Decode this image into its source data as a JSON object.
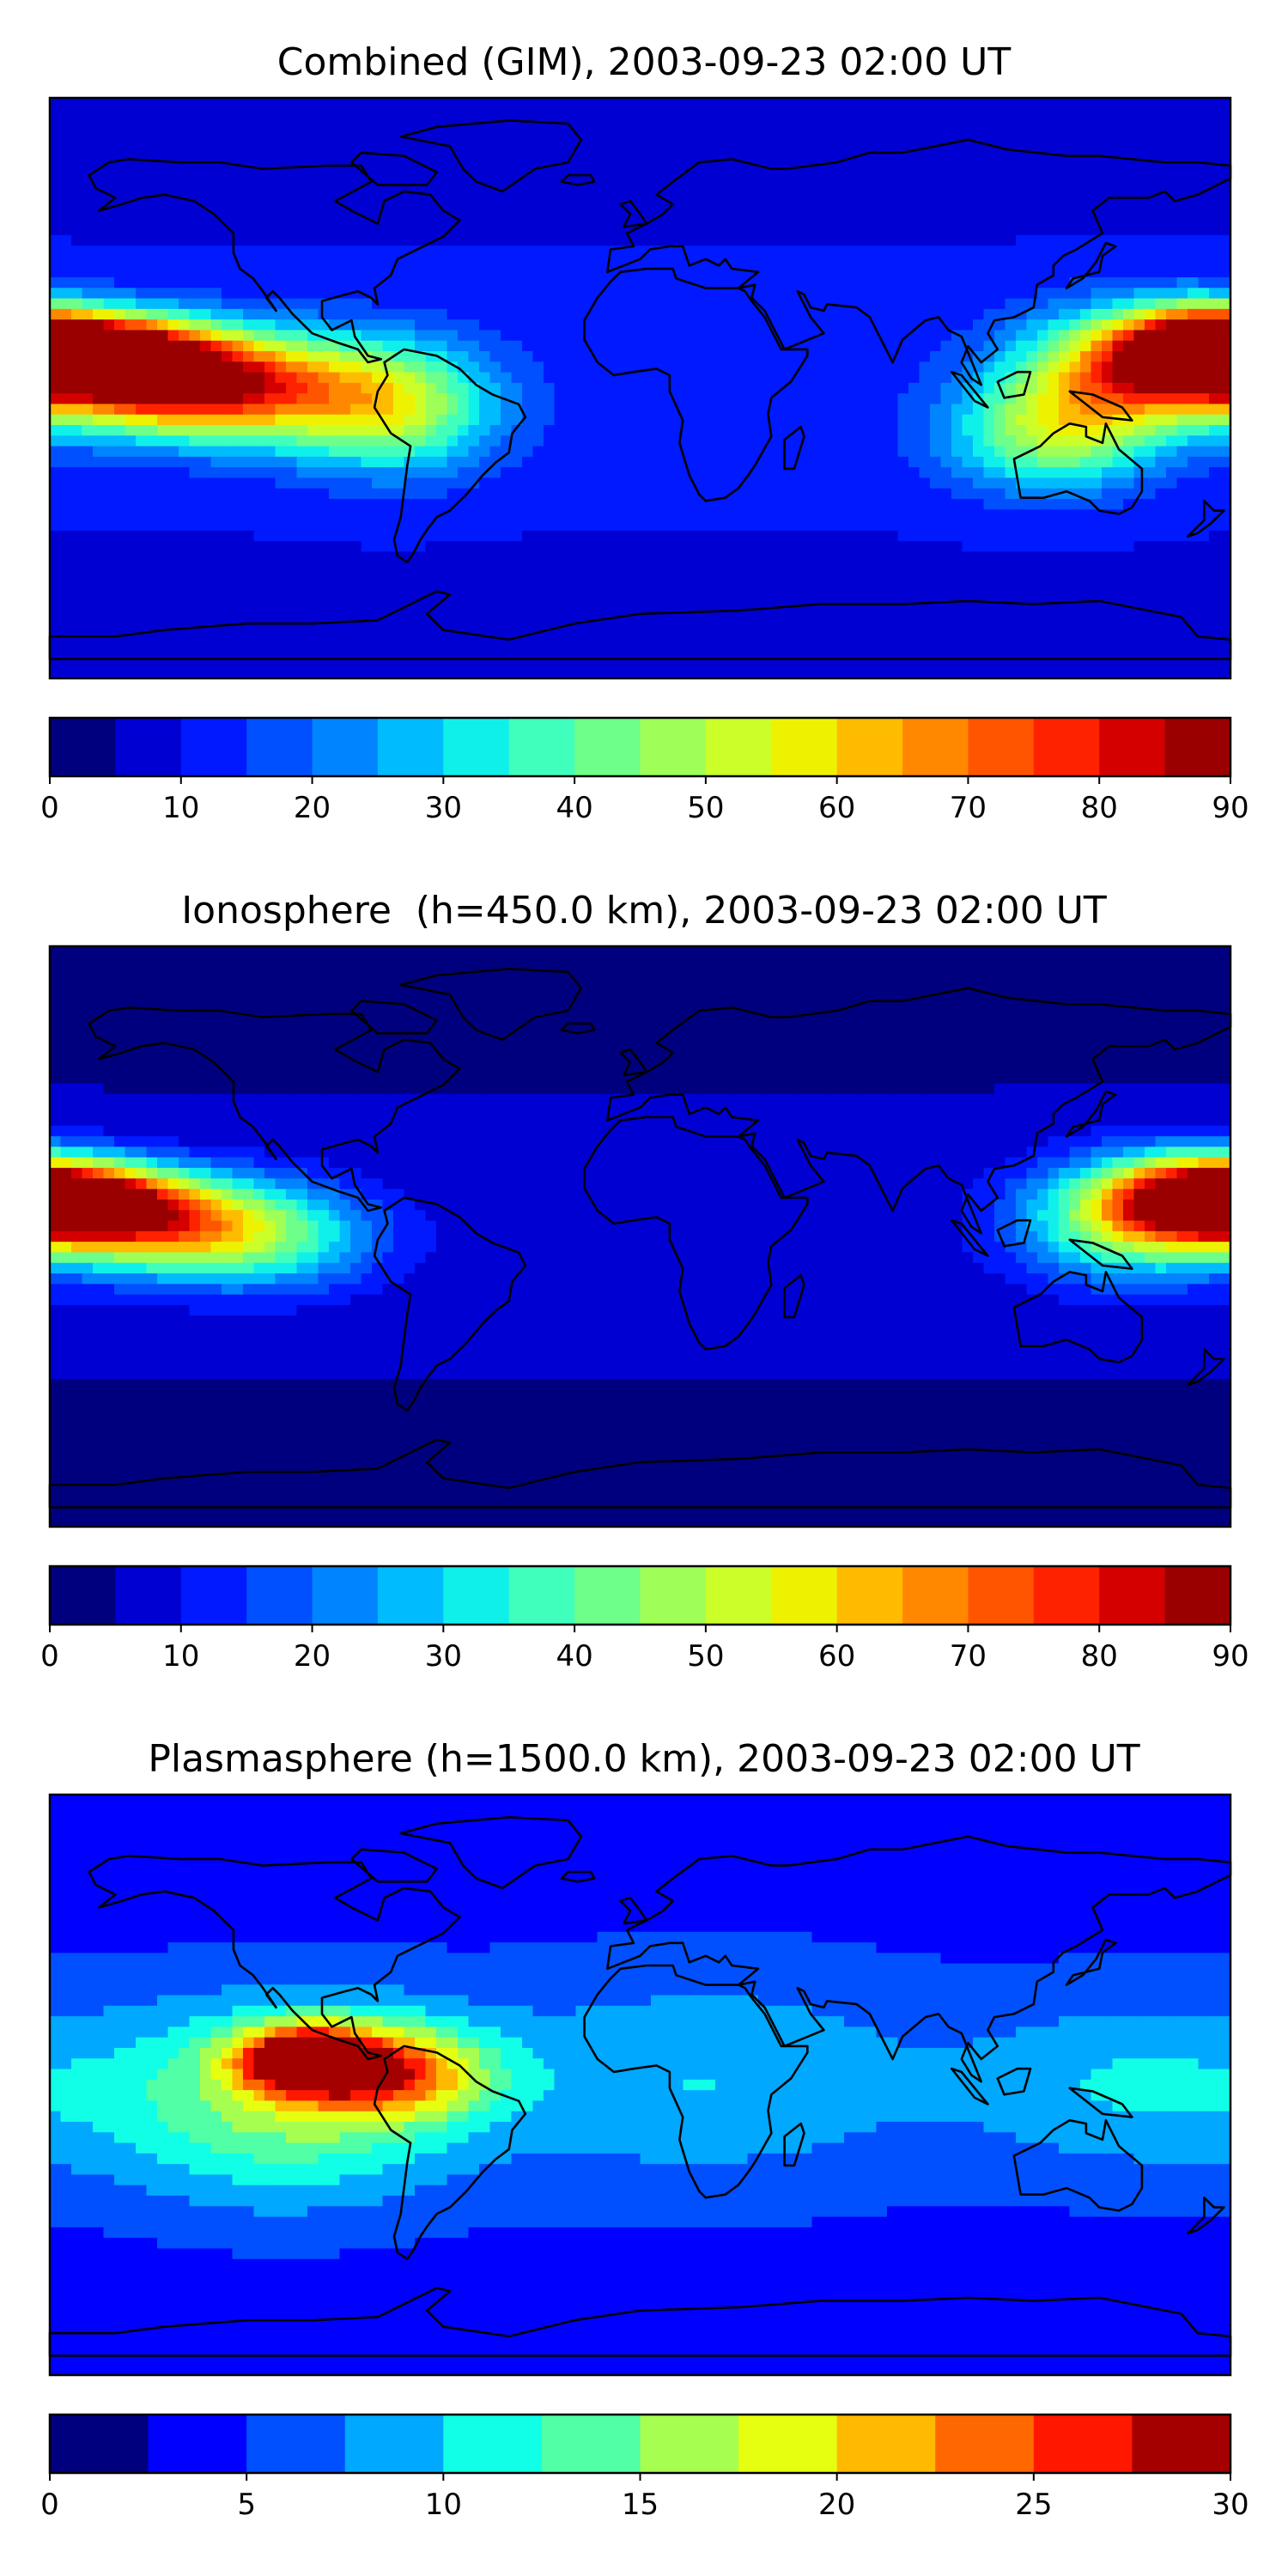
{
  "chart_data": [
    {
      "type": "heatmap",
      "title": "Combined (GIM), 2003-09-23 02:00 UT",
      "projection": "plate-carree",
      "extent": {
        "lon": [
          -180,
          180
        ],
        "lat": [
          -90,
          90
        ]
      },
      "coastlines": true,
      "colormap": "jet",
      "colorbar": {
        "placement": "bottom",
        "range": [
          0,
          90
        ],
        "levels": [
          0,
          5,
          10,
          15,
          20,
          25,
          30,
          35,
          40,
          45,
          50,
          55,
          60,
          65,
          70,
          75,
          80,
          85,
          90
        ],
        "ticks": [
          "0",
          "10",
          "20",
          "30",
          "40",
          "50",
          "60",
          "70",
          "80",
          "90"
        ],
        "colors": [
          "#00007f",
          "#0000d3",
          "#0019ff",
          "#0050ff",
          "#0084ff",
          "#00bcff",
          "#10f0ea",
          "#40ffbd",
          "#6dff89",
          "#a0ff56",
          "#ccff29",
          "#eef200",
          "#ffbb00",
          "#ff8800",
          "#ff5500",
          "#ff2200",
          "#d40000",
          "#9a0000"
        ]
      },
      "features": [
        {
          "lon": -165,
          "lat": 12,
          "value": 82,
          "spread_lon": 22,
          "spread_lat": 8
        },
        {
          "lon": -150,
          "lat": 2,
          "value": 70,
          "spread_lon": 26,
          "spread_lat": 10
        },
        {
          "lon": -118,
          "lat": 0,
          "value": 55,
          "spread_lon": 28,
          "spread_lat": 12
        },
        {
          "lon": -75,
          "lat": -6,
          "value": 48,
          "spread_lon": 22,
          "spread_lat": 14
        },
        {
          "lon": 170,
          "lat": 12,
          "value": 78,
          "spread_lon": 16,
          "spread_lat": 9
        },
        {
          "lon": 148,
          "lat": 5,
          "value": 62,
          "spread_lon": 24,
          "spread_lat": 13
        },
        {
          "lon": 125,
          "lat": -15,
          "value": 45,
          "spread_lon": 22,
          "spread_lat": 12
        }
      ],
      "background": 12
    },
    {
      "type": "heatmap",
      "title": "Ionosphere  (h=450.0 km), 2003-09-23 02:00 UT",
      "projection": "plate-carree",
      "extent": {
        "lon": [
          -180,
          180
        ],
        "lat": [
          -90,
          90
        ]
      },
      "coastlines": true,
      "colormap": "jet",
      "colorbar": {
        "placement": "bottom",
        "range": [
          0,
          90
        ],
        "levels": [
          0,
          5,
          10,
          15,
          20,
          25,
          30,
          35,
          40,
          45,
          50,
          55,
          60,
          65,
          70,
          75,
          80,
          85,
          90
        ],
        "ticks": [
          "0",
          "10",
          "20",
          "30",
          "40",
          "50",
          "60",
          "70",
          "80",
          "90"
        ],
        "colors": [
          "#00007f",
          "#0000d3",
          "#0019ff",
          "#0050ff",
          "#0084ff",
          "#00bcff",
          "#10f0ea",
          "#40ffbd",
          "#6dff89",
          "#a0ff56",
          "#ccff29",
          "#eef200",
          "#ffbb00",
          "#ff8800",
          "#ff5500",
          "#ff2200",
          "#d40000",
          "#9a0000"
        ]
      },
      "features": [
        {
          "lon": -170,
          "lat": 12,
          "value": 70,
          "spread_lon": 20,
          "spread_lat": 8
        },
        {
          "lon": -150,
          "lat": 4,
          "value": 55,
          "spread_lon": 26,
          "spread_lat": 10
        },
        {
          "lon": -115,
          "lat": 0,
          "value": 35,
          "spread_lon": 26,
          "spread_lat": 12
        },
        {
          "lon": 168,
          "lat": 12,
          "value": 62,
          "spread_lon": 18,
          "spread_lat": 9
        },
        {
          "lon": 148,
          "lat": 5,
          "value": 45,
          "spread_lon": 24,
          "spread_lat": 13
        }
      ],
      "background": 6
    },
    {
      "type": "heatmap",
      "title": "Plasmasphere (h=1500.0 km), 2003-09-23 02:00 UT",
      "projection": "plate-carree",
      "extent": {
        "lon": [
          -180,
          180
        ],
        "lat": [
          -90,
          90
        ]
      },
      "coastlines": true,
      "colormap": "jet",
      "colorbar": {
        "placement": "bottom",
        "range": [
          0,
          30
        ],
        "levels": [
          0,
          2.5,
          5,
          7.5,
          10,
          12.5,
          15,
          17.5,
          20,
          22.5,
          25,
          27.5,
          30
        ],
        "ticks": [
          "0",
          "5",
          "10",
          "15",
          "20",
          "25",
          "30"
        ],
        "colors": [
          "#00007f",
          "#0000ff",
          "#0050ff",
          "#00a8ff",
          "#10ffe6",
          "#50ffa6",
          "#a6ff50",
          "#e6ff10",
          "#ffb900",
          "#ff6800",
          "#ff1700",
          "#a50000"
        ]
      },
      "features": [
        {
          "lon": -103,
          "lat": 8,
          "value": 27,
          "spread_lon": 14,
          "spread_lat": 7
        },
        {
          "lon": -75,
          "lat": 4,
          "value": 20,
          "spread_lon": 20,
          "spread_lat": 10
        },
        {
          "lon": -110,
          "lat": -5,
          "value": 16,
          "spread_lon": 38,
          "spread_lat": 22
        },
        {
          "lon": 20,
          "lat": 2,
          "value": 10,
          "spread_lon": 50,
          "spread_lat": 25
        },
        {
          "lon": 150,
          "lat": 0,
          "value": 10,
          "spread_lon": 35,
          "spread_lat": 20
        }
      ],
      "background": 5
    }
  ]
}
